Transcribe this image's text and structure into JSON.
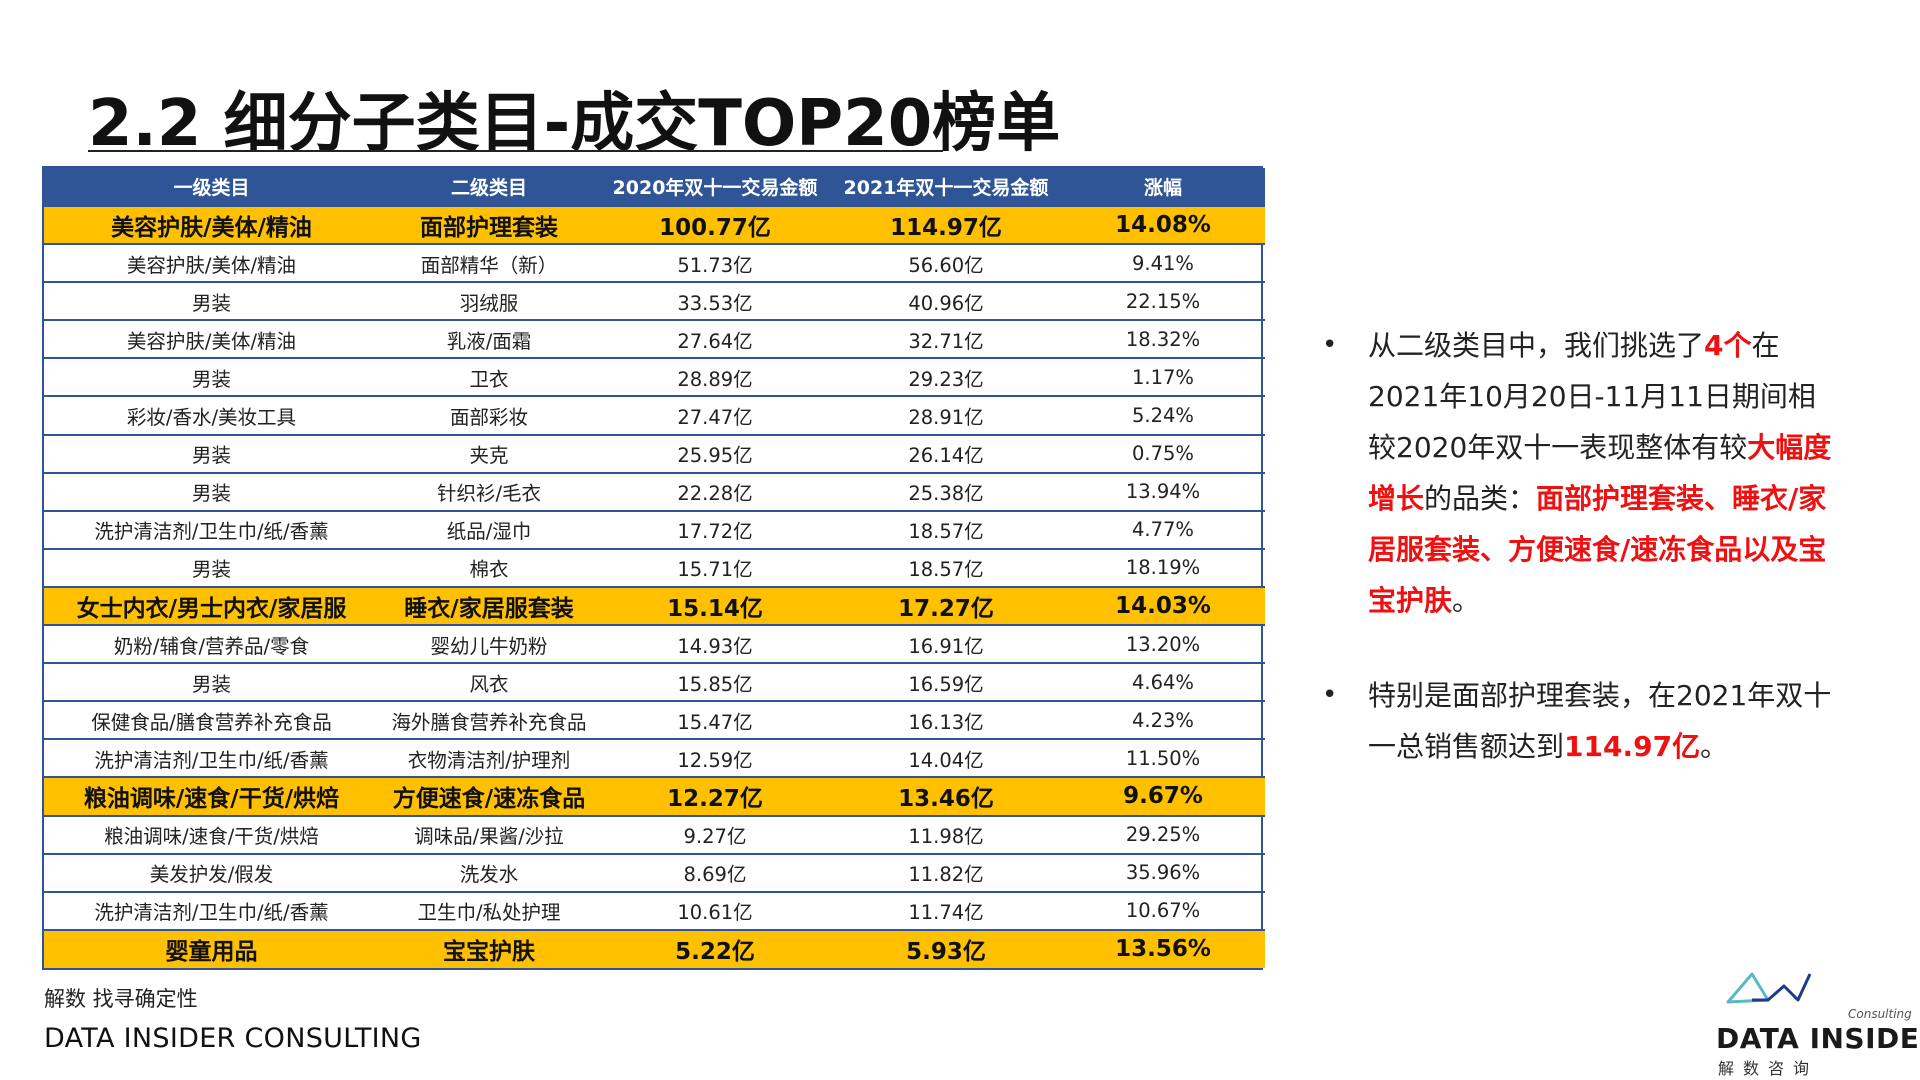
{
  "title": "2.2 细分子类目-成交TOP20榜单",
  "table": {
    "headers": [
      "一级类目",
      "二级类目",
      "2020年双十一交易金额",
      "2021年双十一交易金额",
      "涨幅"
    ],
    "rows": [
      {
        "highlight": true,
        "cells": [
          "美容护肤/美体/精油",
          "面部护理套装",
          "100.77亿",
          "114.97亿",
          "14.08%"
        ]
      },
      {
        "highlight": false,
        "cells": [
          "美容护肤/美体/精油",
          "面部精华（新）",
          "51.73亿",
          "56.60亿",
          "9.41%"
        ]
      },
      {
        "highlight": false,
        "cells": [
          "男装",
          "羽绒服",
          "33.53亿",
          "40.96亿",
          "22.15%"
        ]
      },
      {
        "highlight": false,
        "cells": [
          "美容护肤/美体/精油",
          "乳液/面霜",
          "27.64亿",
          "32.71亿",
          "18.32%"
        ]
      },
      {
        "highlight": false,
        "cells": [
          "男装",
          "卫衣",
          "28.89亿",
          "29.23亿",
          "1.17%"
        ]
      },
      {
        "highlight": false,
        "cells": [
          "彩妆/香水/美妆工具",
          "面部彩妆",
          "27.47亿",
          "28.91亿",
          "5.24%"
        ]
      },
      {
        "highlight": false,
        "cells": [
          "男装",
          "夹克",
          "25.95亿",
          "26.14亿",
          "0.75%"
        ]
      },
      {
        "highlight": false,
        "cells": [
          "男装",
          "针织衫/毛衣",
          "22.28亿",
          "25.38亿",
          "13.94%"
        ]
      },
      {
        "highlight": false,
        "cells": [
          "洗护清洁剂/卫生巾/纸/香薰",
          "纸品/湿巾",
          "17.72亿",
          "18.57亿",
          "4.77%"
        ]
      },
      {
        "highlight": false,
        "cells": [
          "男装",
          "棉衣",
          "15.71亿",
          "18.57亿",
          "18.19%"
        ]
      },
      {
        "highlight": true,
        "cells": [
          "女士内衣/男士内衣/家居服",
          "睡衣/家居服套装",
          "15.14亿",
          "17.27亿",
          "14.03%"
        ]
      },
      {
        "highlight": false,
        "cells": [
          "奶粉/辅食/营养品/零食",
          "婴幼儿牛奶粉",
          "14.93亿",
          "16.91亿",
          "13.20%"
        ]
      },
      {
        "highlight": false,
        "cells": [
          "男装",
          "风衣",
          "15.85亿",
          "16.59亿",
          "4.64%"
        ]
      },
      {
        "highlight": false,
        "cells": [
          "保健食品/膳食营养补充食品",
          "海外膳食营养补充食品",
          "15.47亿",
          "16.13亿",
          "4.23%"
        ]
      },
      {
        "highlight": false,
        "cells": [
          "洗护清洁剂/卫生巾/纸/香薰",
          "衣物清洁剂/护理剂",
          "12.59亿",
          "14.04亿",
          "11.50%"
        ]
      },
      {
        "highlight": true,
        "cells": [
          "粮油调味/速食/干货/烘焙",
          "方便速食/速冻食品",
          "12.27亿",
          "13.46亿",
          "9.67%"
        ]
      },
      {
        "highlight": false,
        "cells": [
          "粮油调味/速食/干货/烘焙",
          "调味品/果酱/沙拉",
          "9.27亿",
          "11.98亿",
          "29.25%"
        ]
      },
      {
        "highlight": false,
        "cells": [
          "美发护发/假发",
          "洗发水",
          "8.69亿",
          "11.82亿",
          "35.96%"
        ]
      },
      {
        "highlight": false,
        "cells": [
          "洗护清洁剂/卫生巾/纸/香薰",
          "卫生巾/私处护理",
          "10.61亿",
          "11.74亿",
          "10.67%"
        ]
      },
      {
        "highlight": true,
        "cells": [
          "婴童用品",
          "宝宝护肤",
          "5.22亿",
          "5.93亿",
          "13.56%"
        ]
      }
    ]
  },
  "bullets": [
    {
      "segments": [
        {
          "text": "从二级类目中，我们挑选了",
          "red": false
        },
        {
          "text": "4个",
          "red": true
        },
        {
          "text": "在2021年10月20日-11月11日期间相较2020年双十一表现整体有较",
          "red": false
        },
        {
          "text": "大幅度增长",
          "red": true
        },
        {
          "text": "的品类：",
          "red": false
        },
        {
          "text": "面部护理套装、睡衣/家居服套装、方便速食/速冻食品以及宝宝护肤",
          "red": true
        },
        {
          "text": "。",
          "red": false
        }
      ]
    },
    {
      "segments": [
        {
          "text": "特别是面部护理套装，在2021年双十一总销售额达到",
          "red": false
        },
        {
          "text": "114.97亿",
          "red": true
        },
        {
          "text": "。",
          "red": false
        }
      ]
    }
  ],
  "footer": {
    "cn": "解数 找寻确定性",
    "en": "DATA INSIDER CONSULTING"
  },
  "logo": {
    "consulting": "Consulting",
    "name": "DATA INSIDER",
    "sub": "解数咨询"
  },
  "colors": {
    "header_blue": "#2f5597",
    "highlight_yellow": "#ffc000",
    "emphasis_red": "#ee1111"
  }
}
